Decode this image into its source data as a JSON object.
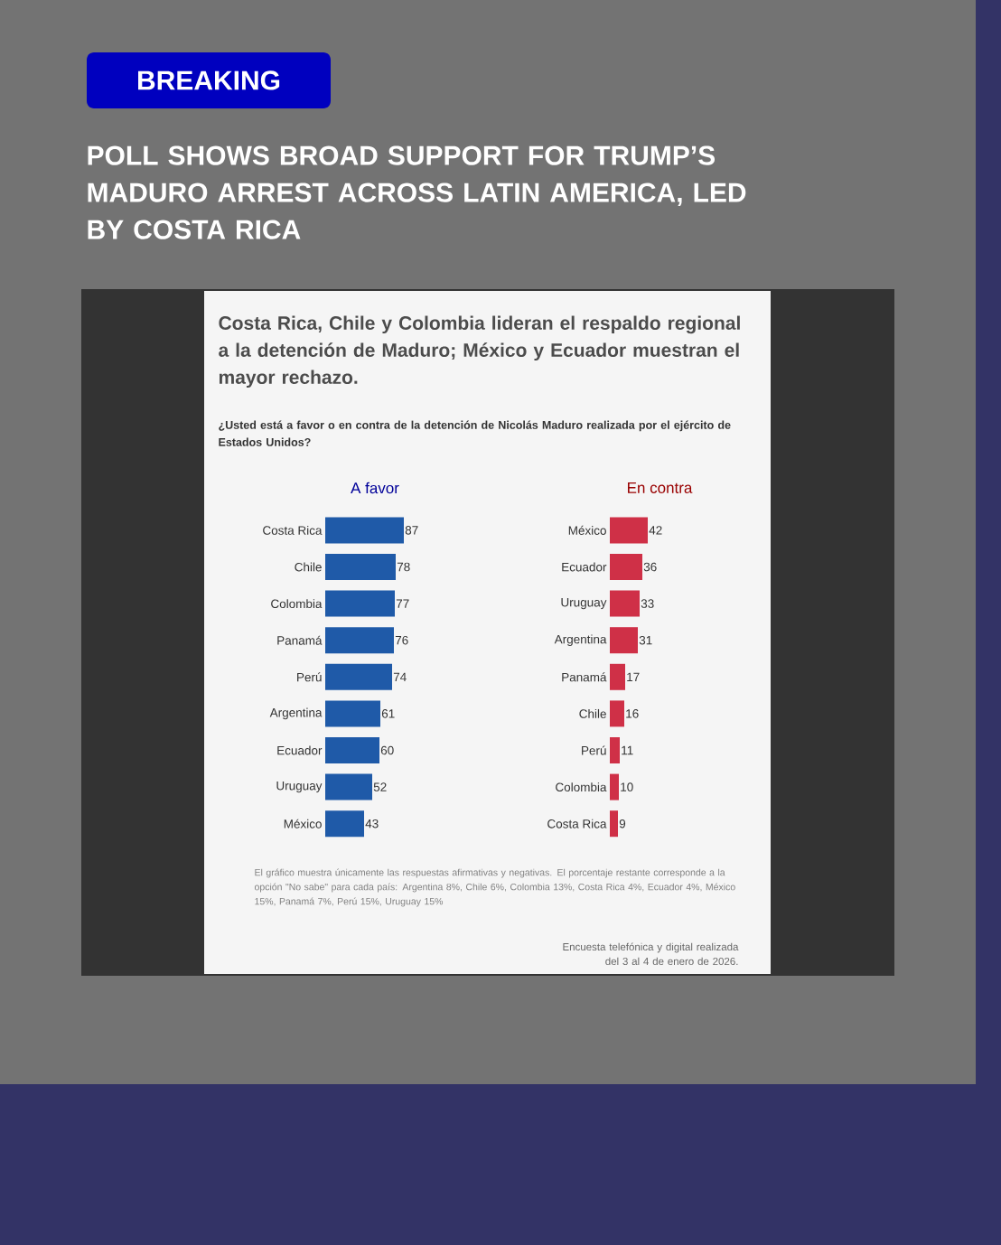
{
  "chart_data": [
    {
      "type": "other",
      "title": "Costa Rica, Chile y Colombia lideran el respaldo regional a la detención de Maduro; México y Ecuador muestran el mayor rechazo.",
      "subtitle": "¿Usted está a favor o en contra de la detención de Nicolás Maduro realizada por el ejército de Estados Unidos?",
      "annotations": [
        "BREAKING",
        "POLL SHOWS BROAD SUPPORT FOR TRUMP’S MADURO ARREST ACROSS LATIN AMERICA, LED BY COSTA RICA",
        "El gráfico muestra únicamente las respuestas afirmativas y negativas. El porcentaje restante corresponde a la opción \"No sabe\" para cada país: Argentina 8%, Chile 6%, Colombia 13%, Costa Rica 4%, Ecuador 4%, México 15%, Panamá 7%, Perú 15%, Uruguay 15%",
        "Encuesta telefónica y digital realizada del 3 al 4 de enero de 2026."
      ]
    },
    {
      "type": "bar",
      "orientation": "horizontal",
      "title": "A favor",
      "data_labels": true,
      "color": "#1f5aa8",
      "categories": [
        "Costa Rica",
        "Chile",
        "Colombia",
        "Panamá",
        "Perú",
        "Argentina",
        "Ecuador",
        "Uruguay",
        "México"
      ],
      "values": [
        87,
        78,
        77,
        76,
        74,
        61,
        60,
        52,
        43
      ]
    },
    {
      "type": "bar",
      "orientation": "horizontal",
      "title": "En contra",
      "data_labels": true,
      "color": "#cf3047",
      "categories": [
        "México",
        "Ecuador",
        "Uruguay",
        "Argentina",
        "Panamá",
        "Chile",
        "Perú",
        "Colombia",
        "Costa Rica"
      ],
      "values": [
        42,
        36,
        33,
        31,
        17,
        16,
        11,
        10,
        9
      ]
    }
  ]
}
